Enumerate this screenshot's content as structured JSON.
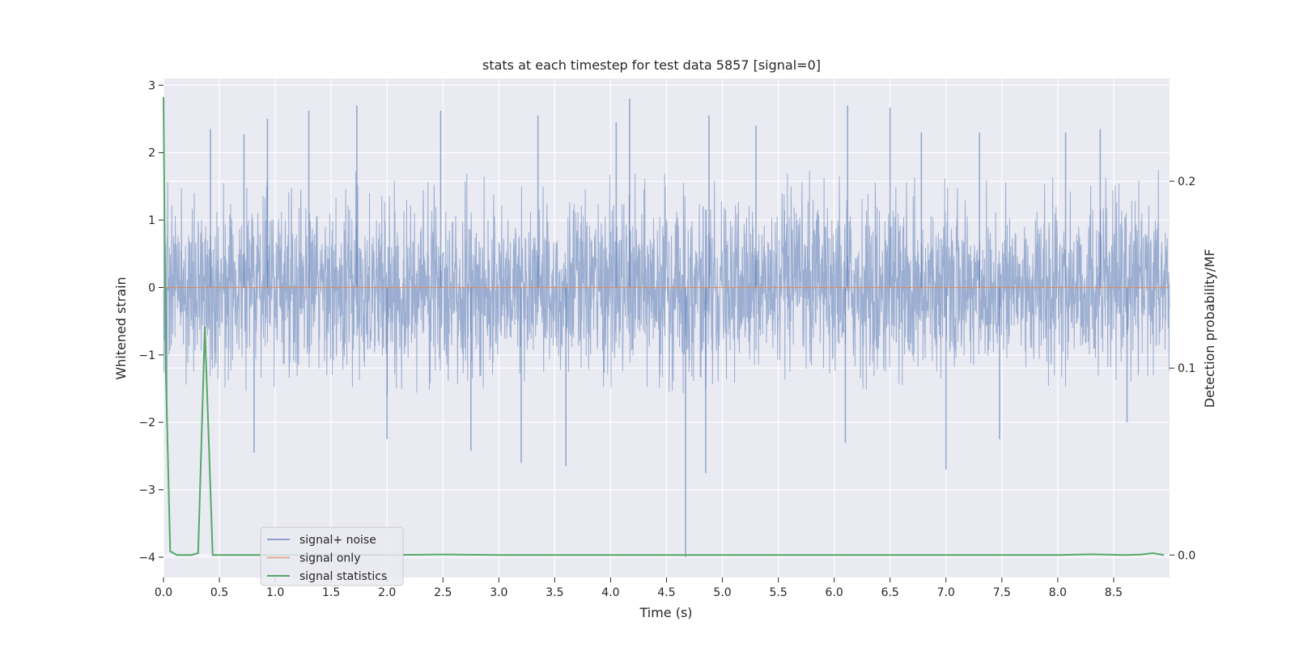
{
  "chart_data": {
    "type": "line",
    "title": "stats at each timestep for test data 5857 [signal=0]",
    "xlabel": "Time (s)",
    "ylabel": "Whitened strain",
    "ylabel_right": "Detection probability/MF",
    "xlim": [
      0.0,
      9.0
    ],
    "ylim": [
      -4.3,
      3.1
    ],
    "ylim_right": [
      -0.012,
      0.255
    ],
    "xticks": [
      "0.0",
      "0.5",
      "1.0",
      "1.5",
      "2.0",
      "2.5",
      "3.0",
      "3.5",
      "4.0",
      "4.5",
      "5.0",
      "5.5",
      "6.0",
      "6.5",
      "7.0",
      "7.5",
      "8.0",
      "8.5"
    ],
    "yticks": [
      "3",
      "2",
      "1",
      "0",
      "−1",
      "−2",
      "−3",
      "−4"
    ],
    "yticks_right": [
      "0.2",
      "0.1",
      "0.0"
    ],
    "grid": true,
    "legend_position": "lower-left",
    "series": [
      {
        "name": "signal+ noise",
        "color": "#4c72b0",
        "axis": "left",
        "description_values": {
          "envelope_upper": [
            1.7,
            1.6,
            1.8,
            1.9,
            1.7,
            1.8,
            1.6,
            1.9,
            1.8,
            1.7,
            1.8,
            1.9,
            1.8,
            1.7,
            1.9,
            1.8,
            1.7,
            1.8
          ],
          "envelope_lower": [
            -1.5,
            -1.6,
            -1.4,
            -1.5,
            -1.6,
            -1.5,
            -1.4,
            -1.6,
            -1.5,
            -1.6,
            -1.5,
            -1.4,
            -1.6,
            -1.5,
            -1.5,
            -1.6,
            -1.5,
            -1.4
          ]
        },
        "spikes": [
          {
            "x": 0.03,
            "y": -2.05
          },
          {
            "x": 0.42,
            "y": 2.35
          },
          {
            "x": 0.72,
            "y": 2.27
          },
          {
            "x": 0.93,
            "y": 2.5
          },
          {
            "x": 0.81,
            "y": -2.45
          },
          {
            "x": 1.3,
            "y": 2.62
          },
          {
            "x": 1.73,
            "y": 2.7
          },
          {
            "x": 2.0,
            "y": -2.25
          },
          {
            "x": 2.48,
            "y": 2.62
          },
          {
            "x": 2.75,
            "y": -2.42
          },
          {
            "x": 3.2,
            "y": -2.6
          },
          {
            "x": 3.35,
            "y": 2.55
          },
          {
            "x": 3.6,
            "y": -2.65
          },
          {
            "x": 4.05,
            "y": 2.45
          },
          {
            "x": 4.17,
            "y": 2.8
          },
          {
            "x": 4.67,
            "y": -4.0
          },
          {
            "x": 4.85,
            "y": -2.75
          },
          {
            "x": 4.88,
            "y": 2.55
          },
          {
            "x": 5.3,
            "y": 2.4
          },
          {
            "x": 6.1,
            "y": -2.3
          },
          {
            "x": 6.12,
            "y": 2.7
          },
          {
            "x": 6.5,
            "y": 2.67
          },
          {
            "x": 6.78,
            "y": 2.3
          },
          {
            "x": 7.0,
            "y": -2.7
          },
          {
            "x": 7.3,
            "y": 2.3
          },
          {
            "x": 7.48,
            "y": -2.25
          },
          {
            "x": 8.07,
            "y": 2.3
          },
          {
            "x": 8.38,
            "y": 2.35
          },
          {
            "x": 8.62,
            "y": -2.0
          }
        ]
      },
      {
        "name": "signal only",
        "color": "#dd8452",
        "axis": "left",
        "x": [
          0.0,
          9.0
        ],
        "y": [
          0.0,
          0.0
        ]
      },
      {
        "name": "signal statistics",
        "color": "#55a868",
        "axis": "right",
        "x": [
          0.0,
          0.02,
          0.06,
          0.12,
          0.25,
          0.31,
          0.37,
          0.44,
          0.5,
          1.0,
          2.0,
          2.5,
          3.0,
          4.0,
          5.0,
          6.0,
          7.0,
          8.0,
          8.3,
          8.6,
          8.75,
          8.85,
          8.95
        ],
        "y": [
          0.245,
          0.1,
          0.002,
          0.0,
          0.0,
          0.001,
          0.122,
          0.0,
          0.0,
          0.0,
          0.0,
          0.0003,
          0.0,
          0.0,
          0.0,
          0.0,
          0.0,
          0.0,
          0.0004,
          0.0,
          0.0003,
          0.001,
          0.0
        ]
      }
    ]
  }
}
